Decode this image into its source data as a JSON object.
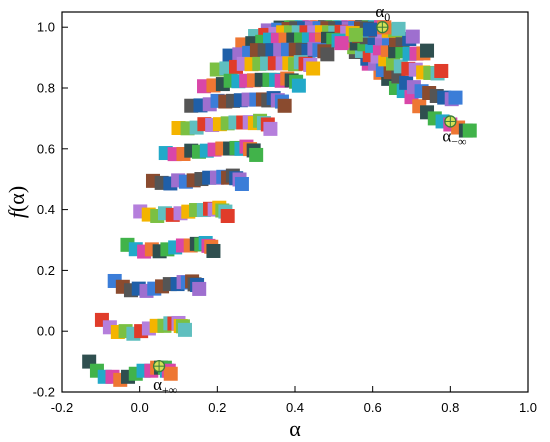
{
  "chart_data": {
    "type": "scatter",
    "title": "",
    "xlabel": "α",
    "ylabel_main": "f",
    "ylabel_arg": "(α)",
    "xlim": [
      -0.2,
      1.0
    ],
    "ylim": [
      -0.2,
      1.05
    ],
    "xticks": [
      -0.2,
      0.0,
      0.2,
      0.4,
      0.6,
      0.8,
      1.0
    ],
    "xtick_labels": [
      "-0.2",
      "0.0",
      "0.2",
      "0.4",
      "0.6",
      "0.8",
      "1.0"
    ],
    "yticks": [
      -0.2,
      0.0,
      0.2,
      0.4,
      0.6,
      0.8,
      1.0
    ],
    "ytick_labels": [
      "-0.2",
      "0.0",
      "0.2",
      "0.4",
      "0.6",
      "0.8",
      "1.0"
    ],
    "grid": false,
    "legend": "none",
    "marker": "square",
    "series_count": 15,
    "curve_family": {
      "left_endpoints": [
        [
          -0.13,
          -0.1
        ],
        [
          -0.11,
          -0.13
        ],
        [
          -0.09,
          -0.15
        ],
        [
          -0.07,
          -0.15
        ],
        [
          -0.05,
          -0.16
        ],
        [
          -0.03,
          -0.15
        ],
        [
          -0.01,
          -0.14
        ],
        [
          0.01,
          -0.13
        ],
        [
          0.03,
          -0.13
        ],
        [
          0.045,
          -0.12
        ],
        [
          0.055,
          -0.12
        ],
        [
          0.065,
          -0.12
        ],
        [
          0.07,
          -0.13
        ],
        [
          0.075,
          -0.13
        ],
        [
          0.08,
          -0.14
        ]
      ],
      "peaks": [
        [
          0.38,
          1.0
        ],
        [
          0.4,
          1.0
        ],
        [
          0.42,
          1.0
        ],
        [
          0.43,
          1.0
        ],
        [
          0.45,
          1.0
        ],
        [
          0.47,
          1.0
        ],
        [
          0.49,
          1.0
        ],
        [
          0.51,
          1.0
        ],
        [
          0.53,
          1.0
        ],
        [
          0.55,
          1.0
        ],
        [
          0.57,
          1.0
        ],
        [
          0.58,
          1.0
        ],
        [
          0.6,
          1.0
        ],
        [
          0.62,
          1.0
        ],
        [
          0.64,
          1.0
        ]
      ],
      "right_endpoints": [
        [
          0.56,
          0.93
        ],
        [
          0.59,
          0.88
        ],
        [
          0.62,
          0.85
        ],
        [
          0.64,
          0.83
        ],
        [
          0.66,
          0.8
        ],
        [
          0.68,
          0.79
        ],
        [
          0.7,
          0.77
        ],
        [
          0.72,
          0.74
        ],
        [
          0.74,
          0.72
        ],
        [
          0.76,
          0.7
        ],
        [
          0.78,
          0.69
        ],
        [
          0.8,
          0.68
        ],
        [
          0.82,
          0.67
        ],
        [
          0.84,
          0.66
        ],
        [
          0.85,
          0.66
        ]
      ]
    },
    "annotations": [
      {
        "base": "α",
        "sub": "0",
        "point": [
          0.625,
          1.0
        ]
      },
      {
        "base": "α",
        "sub": "−∞",
        "point": [
          0.8,
          0.69
        ]
      },
      {
        "base": "α",
        "sub": "+∞",
        "point": [
          0.05,
          -0.115
        ]
      }
    ],
    "colors": {
      "palette": [
        "#2f4f4f",
        "#e03c2a",
        "#3b7dd8",
        "#41b34a",
        "#b57fdc",
        "#8a4b2f",
        "#22a9c9",
        "#f4b400",
        "#555555",
        "#d946a8",
        "#7bc043",
        "#1f5fa8",
        "#ee7733",
        "#5fbfbf",
        "#9e6fcf"
      ],
      "highlight_fill": "#d4e157",
      "highlight_stroke": "#3a7d3a"
    }
  }
}
